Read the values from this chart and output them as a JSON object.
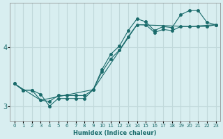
{
  "xlabel": "Humidex (Indice chaleur)",
  "bg_color": "#d8eef0",
  "grid_color": "#c0d8da",
  "line_color": "#1a6b6b",
  "xlim": [
    -0.5,
    23.5
  ],
  "ylim": [
    2.75,
    4.75
  ],
  "yticks": [
    3,
    4
  ],
  "xticks": [
    0,
    1,
    2,
    3,
    4,
    5,
    6,
    7,
    8,
    9,
    10,
    11,
    12,
    13,
    14,
    15,
    16,
    17,
    18,
    19,
    20,
    21,
    22,
    23
  ],
  "line1_x": [
    0,
    1,
    2,
    3,
    4,
    5,
    6,
    7,
    8,
    9,
    10,
    11,
    12,
    13,
    14,
    15,
    16,
    17,
    18,
    19,
    20,
    21,
    22,
    23
  ],
  "line1_y": [
    3.38,
    3.27,
    3.27,
    3.1,
    3.08,
    3.18,
    3.18,
    3.18,
    3.18,
    3.28,
    3.58,
    3.8,
    3.95,
    4.18,
    4.38,
    4.38,
    4.25,
    4.3,
    4.28,
    4.35,
    4.35,
    4.35,
    4.35,
    4.38
  ],
  "line2_x": [
    0,
    1,
    2,
    3,
    4,
    5,
    6,
    7,
    8,
    9,
    10,
    11,
    12,
    13,
    14,
    15,
    16,
    17,
    18,
    19,
    20,
    21,
    22,
    23
  ],
  "line2_y": [
    3.38,
    3.27,
    3.27,
    3.2,
    3.0,
    3.13,
    3.13,
    3.13,
    3.13,
    3.28,
    3.62,
    3.88,
    4.02,
    4.28,
    4.48,
    4.43,
    4.28,
    4.35,
    4.33,
    4.55,
    4.62,
    4.62,
    4.42,
    4.38
  ],
  "line3_x": [
    0,
    3,
    9,
    14,
    20,
    23
  ],
  "line3_y": [
    3.38,
    3.1,
    3.28,
    4.38,
    4.35,
    4.38
  ]
}
